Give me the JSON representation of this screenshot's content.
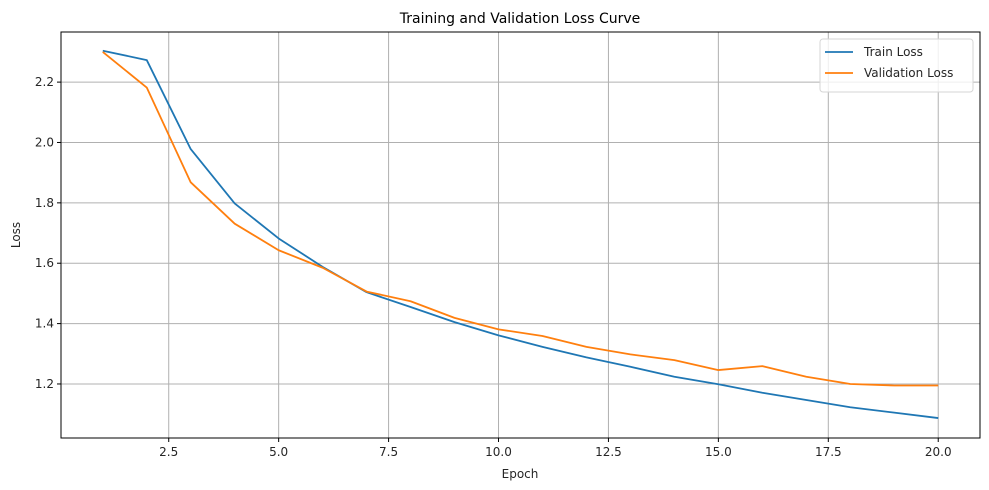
{
  "chart_data": {
    "type": "line",
    "title": "Training and Validation Loss Curve",
    "xlabel": "Epoch",
    "ylabel": "Loss",
    "xlim": [
      0.05,
      20.95
    ],
    "ylim": [
      1.021,
      2.366
    ],
    "xticks": [
      2.5,
      5.0,
      7.5,
      10.0,
      12.5,
      15.0,
      17.5,
      20.0
    ],
    "xtick_labels": [
      "2.5",
      "5.0",
      "7.5",
      "10.0",
      "12.5",
      "15.0",
      "17.5",
      "20.0"
    ],
    "yticks": [
      1.2,
      1.4,
      1.6,
      1.8,
      2.0,
      2.2
    ],
    "ytick_labels": [
      "1.2",
      "1.4",
      "1.6",
      "1.8",
      "2.0",
      "2.2"
    ],
    "grid": true,
    "legend_position": "top-right",
    "x": [
      1,
      2,
      3,
      4,
      5,
      6,
      7,
      8,
      9,
      10,
      11,
      12,
      13,
      14,
      15,
      16,
      17,
      18,
      19,
      20
    ],
    "series": [
      {
        "name": "Train Loss",
        "color": "#1f77b4",
        "values": [
          2.304,
          2.273,
          1.978,
          1.798,
          1.682,
          1.588,
          1.504,
          1.455,
          1.405,
          1.361,
          1.323,
          1.288,
          1.257,
          1.224,
          1.199,
          1.171,
          1.147,
          1.123,
          1.105,
          1.087
        ]
      },
      {
        "name": "Validation Loss",
        "color": "#ff7f0e",
        "values": [
          2.3,
          2.182,
          1.868,
          1.731,
          1.643,
          1.585,
          1.506,
          1.474,
          1.419,
          1.381,
          1.359,
          1.323,
          1.298,
          1.279,
          1.246,
          1.259,
          1.224,
          1.2,
          1.195,
          1.195
        ]
      }
    ]
  }
}
